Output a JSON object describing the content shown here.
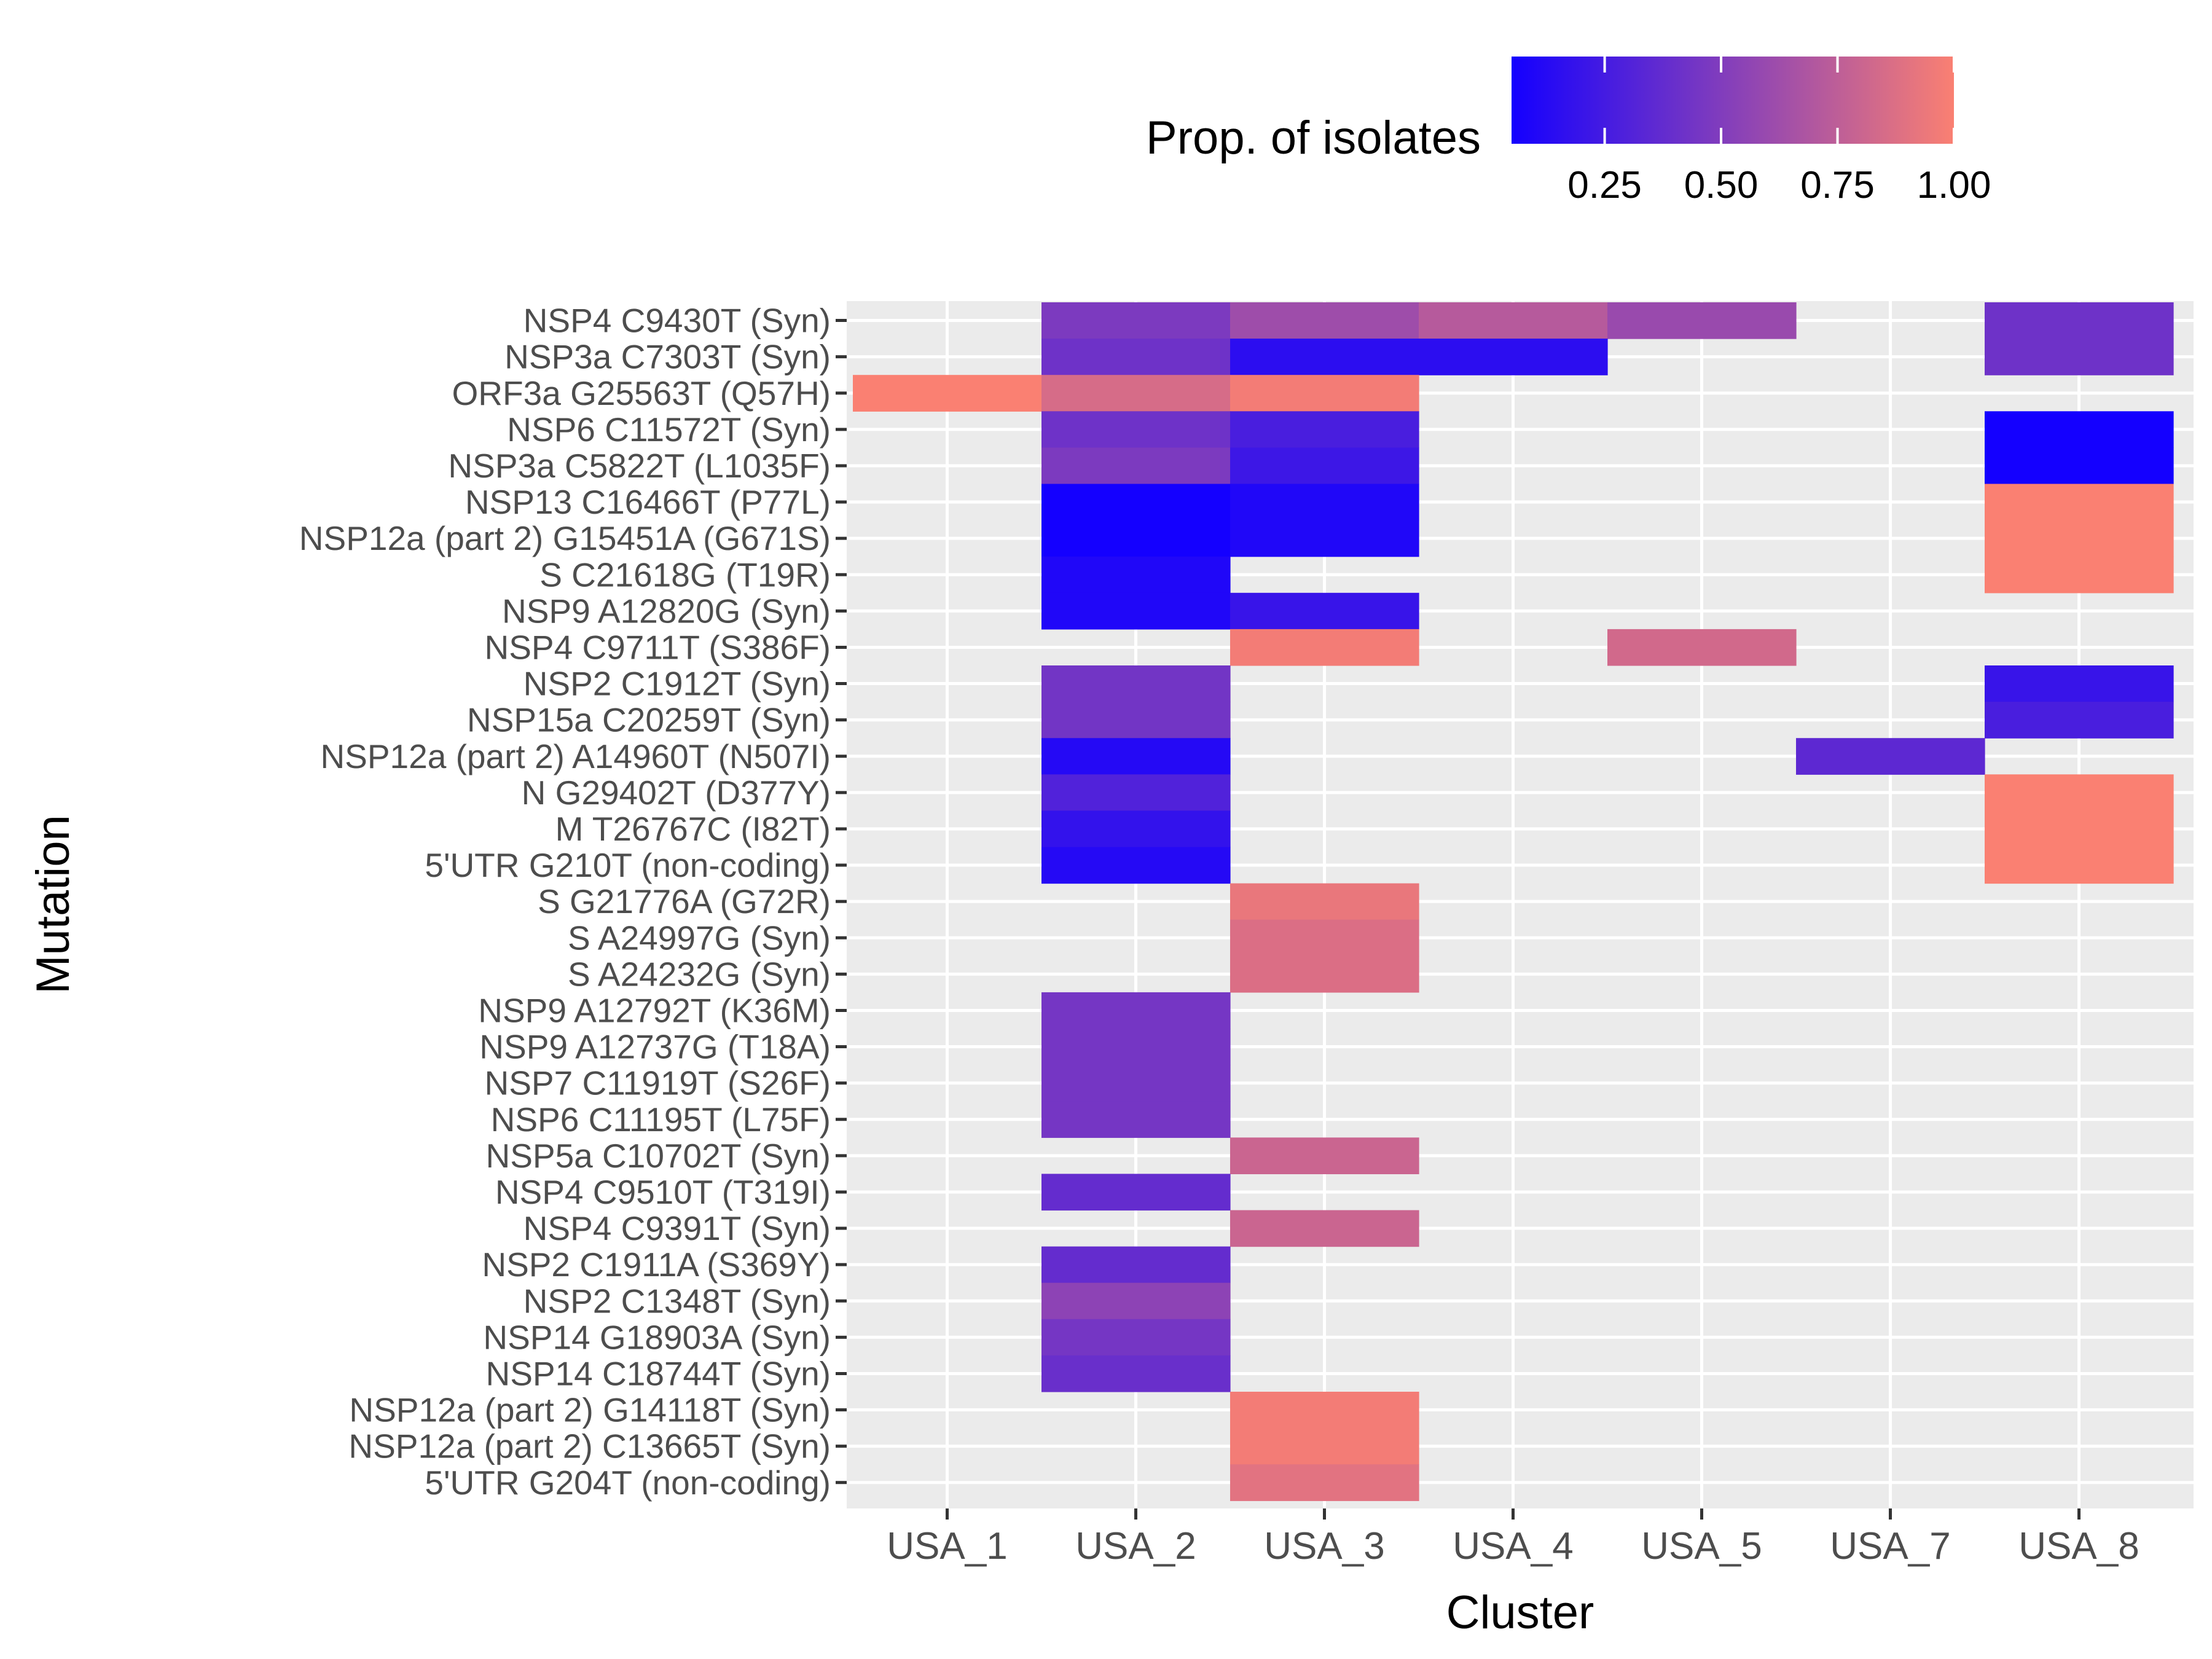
{
  "chart_data": {
    "type": "heatmap",
    "title": "",
    "xlabel": "Cluster",
    "ylabel": "Mutation",
    "legend": {
      "title": "Prop. of isolates",
      "position": "top",
      "ticks": [
        "0.25",
        "0.50",
        "0.75",
        "1.00"
      ],
      "tick_values": [
        0.25,
        0.5,
        0.75,
        1.0
      ],
      "range": [
        0.05,
        1.0
      ],
      "low_color": "#1400ff",
      "high_color": "#fa8072"
    },
    "panel_color": "#ebebeb",
    "grid_color": "#ffffff",
    "x_categories": [
      "USA_1",
      "USA_2",
      "USA_3",
      "USA_4",
      "USA_5",
      "USA_7",
      "USA_8"
    ],
    "y_categories": [
      "NSP4 C9430T (Syn)",
      "NSP3a C7303T (Syn)",
      "ORF3a G25563T (Q57H)",
      "NSP6 C11572T (Syn)",
      "NSP3a C5822T (L1035F)",
      "NSP13 C16466T (P77L)",
      "NSP12a (part 2) G15451A (G671S)",
      "S C21618G (T19R)",
      "NSP9 A12820G (Syn)",
      "NSP4 C9711T (S386F)",
      "NSP2 C1912T (Syn)",
      "NSP15a C20259T (Syn)",
      "NSP12a (part 2) A14960T (N507I)",
      "N G29402T (D377Y)",
      "M T26767C (I82T)",
      "5'UTR G210T (non-coding)",
      "S G21776A (G72R)",
      "S A24997G (Syn)",
      "S A24232G (Syn)",
      "NSP9 A12792T (K36M)",
      "NSP9 A12737G (T18A)",
      "NSP7 C11919T (S26F)",
      "NSP6 C11195T (L75F)",
      "NSP5a C10702T (Syn)",
      "NSP4 C9510T (T319I)",
      "NSP4 C9391T (Syn)",
      "NSP2 C1911A (S369Y)",
      "NSP2 C1348T (Syn)",
      "NSP14 G18903A (Syn)",
      "NSP14 C18744T (Syn)",
      "NSP12a (part 2) G14118T (Syn)",
      "NSP12a (part 2) C13665T (Syn)",
      "5'UTR G204T (non-coding)"
    ],
    "cells": [
      {
        "x": "USA_2",
        "y": "NSP4 C9430T (Syn)",
        "value": 0.48
      },
      {
        "x": "USA_3",
        "y": "NSP4 C9430T (Syn)",
        "value": 0.62
      },
      {
        "x": "USA_4",
        "y": "NSP4 C9430T (Syn)",
        "value": 0.72
      },
      {
        "x": "USA_5",
        "y": "NSP4 C9430T (Syn)",
        "value": 0.6
      },
      {
        "x": "USA_8",
        "y": "NSP4 C9430T (Syn)",
        "value": 0.42
      },
      {
        "x": "USA_2",
        "y": "NSP3a C7303T (Syn)",
        "value": 0.42
      },
      {
        "x": "USA_3",
        "y": "NSP3a C7303T (Syn)",
        "value": 0.15
      },
      {
        "x": "USA_4",
        "y": "NSP3a C7303T (Syn)",
        "value": 0.15
      },
      {
        "x": "USA_8",
        "y": "NSP3a C7303T (Syn)",
        "value": 0.42
      },
      {
        "x": "USA_1",
        "y": "ORF3a G25563T (Q57H)",
        "value": 1.0
      },
      {
        "x": "USA_2",
        "y": "ORF3a G25563T (Q57H)",
        "value": 0.85
      },
      {
        "x": "USA_3",
        "y": "ORF3a G25563T (Q57H)",
        "value": 0.97
      },
      {
        "x": "USA_2",
        "y": "NSP6 C11572T (Syn)",
        "value": 0.42
      },
      {
        "x": "USA_3",
        "y": "NSP6 C11572T (Syn)",
        "value": 0.27
      },
      {
        "x": "USA_8",
        "y": "NSP6 C11572T (Syn)",
        "value": 0.05
      },
      {
        "x": "USA_2",
        "y": "NSP3a C5822T (L1035F)",
        "value": 0.48
      },
      {
        "x": "USA_3",
        "y": "NSP3a C5822T (L1035F)",
        "value": 0.22
      },
      {
        "x": "USA_8",
        "y": "NSP3a C5822T (L1035F)",
        "value": 0.05
      },
      {
        "x": "USA_2",
        "y": "NSP13 C16466T (P77L)",
        "value": 0.05
      },
      {
        "x": "USA_3",
        "y": "NSP13 C16466T (P77L)",
        "value": 0.1
      },
      {
        "x": "USA_8",
        "y": "NSP13 C16466T (P77L)",
        "value": 1.0
      },
      {
        "x": "USA_2",
        "y": "NSP12a (part 2) G15451A (G671S)",
        "value": 0.05
      },
      {
        "x": "USA_3",
        "y": "NSP12a (part 2) G15451A (G671S)",
        "value": 0.1
      },
      {
        "x": "USA_8",
        "y": "NSP12a (part 2) G15451A (G671S)",
        "value": 1.0
      },
      {
        "x": "USA_2",
        "y": "S C21618G (T19R)",
        "value": 0.1
      },
      {
        "x": "USA_8",
        "y": "S C21618G (T19R)",
        "value": 1.0
      },
      {
        "x": "USA_2",
        "y": "NSP9 A12820G (Syn)",
        "value": 0.1
      },
      {
        "x": "USA_3",
        "y": "NSP9 A12820G (Syn)",
        "value": 0.2
      },
      {
        "x": "USA_3",
        "y": "NSP4 C9711T (S386F)",
        "value": 0.97
      },
      {
        "x": "USA_5",
        "y": "NSP4 C9711T (S386F)",
        "value": 0.83
      },
      {
        "x": "USA_2",
        "y": "NSP2 C1912T (Syn)",
        "value": 0.44
      },
      {
        "x": "USA_8",
        "y": "NSP2 C1912T (Syn)",
        "value": 0.2
      },
      {
        "x": "USA_2",
        "y": "NSP15a C20259T (Syn)",
        "value": 0.44
      },
      {
        "x": "USA_8",
        "y": "NSP15a C20259T (Syn)",
        "value": 0.27
      },
      {
        "x": "USA_2",
        "y": "NSP12a (part 2) A14960T (N507I)",
        "value": 0.12
      },
      {
        "x": "USA_7",
        "y": "NSP12a (part 2) A14960T (N507I)",
        "value": 0.35
      },
      {
        "x": "USA_2",
        "y": "N G29402T (D377Y)",
        "value": 0.3
      },
      {
        "x": "USA_8",
        "y": "N G29402T (D377Y)",
        "value": 1.0
      },
      {
        "x": "USA_2",
        "y": "M T26767C (I82T)",
        "value": 0.18
      },
      {
        "x": "USA_8",
        "y": "M T26767C (I82T)",
        "value": 1.0
      },
      {
        "x": "USA_2",
        "y": "5'UTR G210T (non-coding)",
        "value": 0.12
      },
      {
        "x": "USA_8",
        "y": "5'UTR G210T (non-coding)",
        "value": 1.0
      },
      {
        "x": "USA_3",
        "y": "S G21776A (G72R)",
        "value": 0.93
      },
      {
        "x": "USA_3",
        "y": "S A24997G (Syn)",
        "value": 0.87
      },
      {
        "x": "USA_3",
        "y": "S A24232G (Syn)",
        "value": 0.87
      },
      {
        "x": "USA_2",
        "y": "NSP9 A12792T (K36M)",
        "value": 0.45
      },
      {
        "x": "USA_2",
        "y": "NSP9 A12737G (T18A)",
        "value": 0.45
      },
      {
        "x": "USA_2",
        "y": "NSP7 C11919T (S26F)",
        "value": 0.45
      },
      {
        "x": "USA_2",
        "y": "NSP6 C11195T (L75F)",
        "value": 0.45
      },
      {
        "x": "USA_3",
        "y": "NSP5a C10702T (Syn)",
        "value": 0.8
      },
      {
        "x": "USA_2",
        "y": "NSP4 C9510T (T319I)",
        "value": 0.38
      },
      {
        "x": "USA_3",
        "y": "NSP4 C9391T (Syn)",
        "value": 0.8
      },
      {
        "x": "USA_2",
        "y": "NSP2 C1911A (S369Y)",
        "value": 0.38
      },
      {
        "x": "USA_2",
        "y": "NSP2 C1348T (Syn)",
        "value": 0.55
      },
      {
        "x": "USA_2",
        "y": "NSP14 G18903A (Syn)",
        "value": 0.45
      },
      {
        "x": "USA_2",
        "y": "NSP14 C18744T (Syn)",
        "value": 0.4
      },
      {
        "x": "USA_3",
        "y": "NSP12a (part 2) G14118T (Syn)",
        "value": 0.97
      },
      {
        "x": "USA_3",
        "y": "NSP12a (part 2) C13665T (Syn)",
        "value": 0.97
      },
      {
        "x": "USA_3",
        "y": "5'UTR G204T (non-coding)",
        "value": 0.9
      }
    ]
  }
}
